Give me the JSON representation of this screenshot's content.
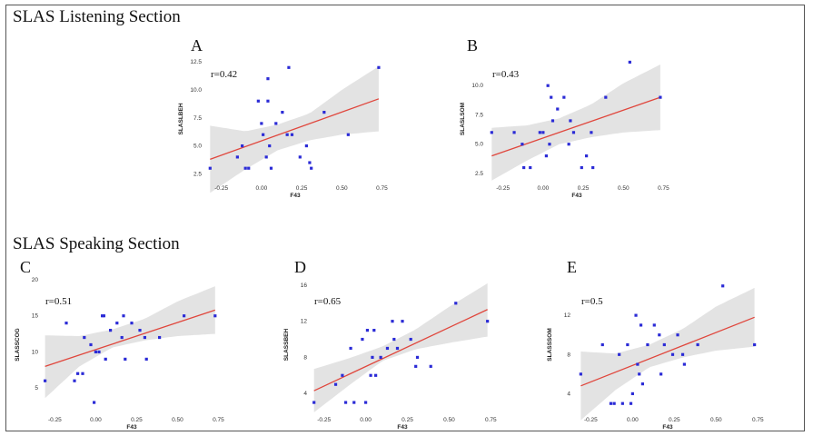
{
  "sections": {
    "listening": "SLAS Listening Section",
    "speaking": "SLAS Speaking Section"
  },
  "colors": {
    "point": "#2b2bd6",
    "fit_line": "#e0463c",
    "band": "#e3e3e3"
  },
  "chart_data": [
    {
      "type": "scatter",
      "panel": "A",
      "r_label": "r=0.42",
      "xlabel": "F43",
      "ylabel": "SLASLBEH",
      "xlim": [
        -0.35,
        0.77
      ],
      "ylim": [
        1.8,
        13.0
      ],
      "xticks": [
        -0.25,
        0.0,
        0.25,
        0.5,
        0.75
      ],
      "xtick_labels": [
        "-0.25",
        "0.00",
        "0.25",
        "0.50",
        "0.75"
      ],
      "yticks": [
        2.5,
        5.0,
        7.5,
        10.0,
        12.5
      ],
      "ytick_labels": [
        "2.5",
        "5.0",
        "7.5",
        "10.0",
        "12.5"
      ],
      "x": [
        -0.32,
        -0.15,
        -0.12,
        -0.1,
        -0.08,
        -0.02,
        0.0,
        0.01,
        0.03,
        0.04,
        0.04,
        0.05,
        0.06,
        0.09,
        0.13,
        0.16,
        0.17,
        0.19,
        0.24,
        0.28,
        0.3,
        0.31,
        0.39,
        0.54,
        0.73
      ],
      "y": [
        3.0,
        4.0,
        5.0,
        3.0,
        3.0,
        9.0,
        7.0,
        6.0,
        4.0,
        9.0,
        11.0,
        5.0,
        3.0,
        7.0,
        8.0,
        6.0,
        12.0,
        6.0,
        4.0,
        5.0,
        3.5,
        3.0,
        8.0,
        6.0,
        12.0
      ],
      "fit": {
        "x0": -0.32,
        "y0": 3.8,
        "x1": 0.73,
        "y1": 9.2
      },
      "band": {
        "x": [
          -0.32,
          -0.1,
          0.1,
          0.3,
          0.5,
          0.73
        ],
        "lower": [
          0.8,
          2.9,
          4.6,
          5.5,
          6.0,
          6.3
        ],
        "upper": [
          6.8,
          6.3,
          6.9,
          7.9,
          10.0,
          12.1
        ]
      }
    },
    {
      "type": "scatter",
      "panel": "B",
      "r_label": "r=0.43",
      "xlabel": "F43",
      "ylabel": "SLASLSOM",
      "xlim": [
        -0.35,
        0.77
      ],
      "ylim": [
        1.8,
        12.5
      ],
      "xticks": [
        -0.25,
        0.0,
        0.25,
        0.5,
        0.75
      ],
      "xtick_labels": [
        "-0.25",
        "0.00",
        "0.25",
        "0.50",
        "0.75"
      ],
      "yticks": [
        2.5,
        5.0,
        7.5,
        10.0
      ],
      "ytick_labels": [
        "2.5",
        "5.0",
        "7.5",
        "10.0"
      ],
      "x": [
        -0.32,
        -0.18,
        -0.13,
        -0.12,
        -0.08,
        -0.02,
        0.0,
        0.02,
        0.03,
        0.04,
        0.05,
        0.06,
        0.09,
        0.13,
        0.16,
        0.17,
        0.19,
        0.24,
        0.27,
        0.3,
        0.31,
        0.39,
        0.54,
        0.73
      ],
      "y": [
        6.0,
        6.0,
        5.0,
        3.0,
        3.0,
        6.0,
        6.0,
        4.0,
        10.0,
        5.0,
        9.0,
        7.0,
        8.0,
        9.0,
        5.0,
        7.0,
        6.0,
        3.0,
        4.0,
        6.0,
        3.0,
        9.0,
        12.0,
        9.0
      ],
      "fit": {
        "x0": -0.32,
        "y0": 4.0,
        "x1": 0.73,
        "y1": 9.0
      },
      "band": {
        "x": [
          -0.32,
          -0.1,
          0.1,
          0.3,
          0.5,
          0.73
        ],
        "lower": [
          1.9,
          3.6,
          5.0,
          5.6,
          6.0,
          6.2
        ],
        "upper": [
          6.4,
          6.6,
          7.2,
          8.4,
          10.2,
          11.8
        ]
      }
    },
    {
      "type": "scatter",
      "panel": "C",
      "r_label": "r=0.51",
      "xlabel": "F43",
      "ylabel": "SLASSCOG",
      "xlim": [
        -0.33,
        0.77
      ],
      "ylim": [
        1.5,
        20.5
      ],
      "xticks": [
        -0.25,
        0.0,
        0.25,
        0.5,
        0.75
      ],
      "xtick_labels": [
        "-0.25",
        "0.00",
        "0.25",
        "0.50",
        "0.75"
      ],
      "yticks": [
        5,
        10,
        15,
        20
      ],
      "ytick_labels": [
        "5",
        "10",
        "15",
        "20"
      ],
      "x": [
        -0.31,
        -0.18,
        -0.13,
        -0.11,
        -0.08,
        -0.07,
        -0.03,
        -0.01,
        0.0,
        0.02,
        0.04,
        0.05,
        0.06,
        0.09,
        0.13,
        0.16,
        0.17,
        0.18,
        0.22,
        0.27,
        0.3,
        0.31,
        0.39,
        0.54,
        0.73
      ],
      "y": [
        6.0,
        14.0,
        6.0,
        7.0,
        7.0,
        12.0,
        11.0,
        3.0,
        10.0,
        10.0,
        15.0,
        15.0,
        9.0,
        13.0,
        14.0,
        12.0,
        15.0,
        9.0,
        14.0,
        13.0,
        12.0,
        9.0,
        12.0,
        15.0,
        15.0
      ],
      "fit": {
        "x0": -0.31,
        "y0": 8.0,
        "x1": 0.73,
        "y1": 15.8
      },
      "band": {
        "x": [
          -0.31,
          -0.1,
          0.1,
          0.3,
          0.5,
          0.73
        ],
        "lower": [
          3.6,
          8.0,
          10.6,
          11.6,
          12.2,
          12.5
        ],
        "upper": [
          12.3,
          12.2,
          13.1,
          14.6,
          17.0,
          19.1
        ]
      }
    },
    {
      "type": "scatter",
      "panel": "D",
      "r_label": "r=0.65",
      "xlabel": "F43",
      "ylabel": "SLASSBEH",
      "xlim": [
        -0.33,
        0.77
      ],
      "ylim": [
        1.8,
        17.0
      ],
      "xticks": [
        -0.25,
        0.0,
        0.25,
        0.5,
        0.75
      ],
      "xtick_labels": [
        "-0.25",
        "0.00",
        "0.25",
        "0.50",
        "0.75"
      ],
      "yticks": [
        4,
        8,
        12,
        16
      ],
      "ytick_labels": [
        "4",
        "8",
        "12",
        "16"
      ],
      "x": [
        -0.31,
        -0.18,
        -0.14,
        -0.12,
        -0.09,
        -0.07,
        -0.02,
        0.0,
        0.01,
        0.03,
        0.04,
        0.05,
        0.06,
        0.09,
        0.13,
        0.16,
        0.17,
        0.19,
        0.22,
        0.27,
        0.3,
        0.31,
        0.39,
        0.54,
        0.73
      ],
      "y": [
        3.0,
        5.0,
        6.0,
        3.0,
        9.0,
        3.0,
        10.0,
        3.0,
        11.0,
        6.0,
        8.0,
        11.0,
        6.0,
        8.0,
        9.0,
        12.0,
        10.0,
        9.0,
        12.0,
        10.0,
        7.0,
        8.0,
        7.0,
        14.0,
        12.0
      ],
      "fit": {
        "x0": -0.31,
        "y0": 4.3,
        "x1": 0.73,
        "y1": 13.3
      },
      "band": {
        "x": [
          -0.31,
          -0.1,
          0.1,
          0.3,
          0.5,
          0.73
        ],
        "lower": [
          1.9,
          4.9,
          7.6,
          8.9,
          9.6,
          10.3
        ],
        "upper": [
          6.7,
          7.9,
          9.2,
          11.1,
          13.6,
          16.2
        ]
      }
    },
    {
      "type": "scatter",
      "panel": "E",
      "r_label": "r=0.5",
      "xlabel": "F43",
      "ylabel": "SLASSSOM",
      "xlim": [
        -0.35,
        0.77
      ],
      "ylim": [
        2.0,
        16.0
      ],
      "xticks": [
        -0.25,
        0.0,
        0.25,
        0.5,
        0.75
      ],
      "xtick_labels": [
        "-0.25",
        "0.00",
        "0.25",
        "0.50",
        "0.75"
      ],
      "yticks": [
        4,
        8,
        12
      ],
      "ytick_labels": [
        "4",
        "8",
        "12"
      ],
      "x": [
        -0.31,
        -0.18,
        -0.13,
        -0.11,
        -0.08,
        -0.06,
        -0.03,
        -0.01,
        0.0,
        0.02,
        0.03,
        0.04,
        0.05,
        0.06,
        0.09,
        0.13,
        0.16,
        0.17,
        0.19,
        0.24,
        0.27,
        0.3,
        0.31,
        0.39,
        0.54,
        0.73
      ],
      "y": [
        6.0,
        9.0,
        3.0,
        3.0,
        8.0,
        3.0,
        9.0,
        3.0,
        4.0,
        12.0,
        7.0,
        6.0,
        11.0,
        5.0,
        9.0,
        11.0,
        10.0,
        6.0,
        9.0,
        8.0,
        10.0,
        8.0,
        7.0,
        9.0,
        15.0,
        9.0
      ],
      "fit": {
        "x0": -0.31,
        "y0": 4.8,
        "x1": 0.73,
        "y1": 11.8
      },
      "band": {
        "x": [
          -0.31,
          -0.1,
          0.1,
          0.3,
          0.5,
          0.73
        ],
        "lower": [
          1.3,
          4.4,
          6.7,
          7.7,
          8.4,
          8.8
        ],
        "upper": [
          8.3,
          8.1,
          9.0,
          10.6,
          12.9,
          14.8
        ]
      }
    }
  ]
}
